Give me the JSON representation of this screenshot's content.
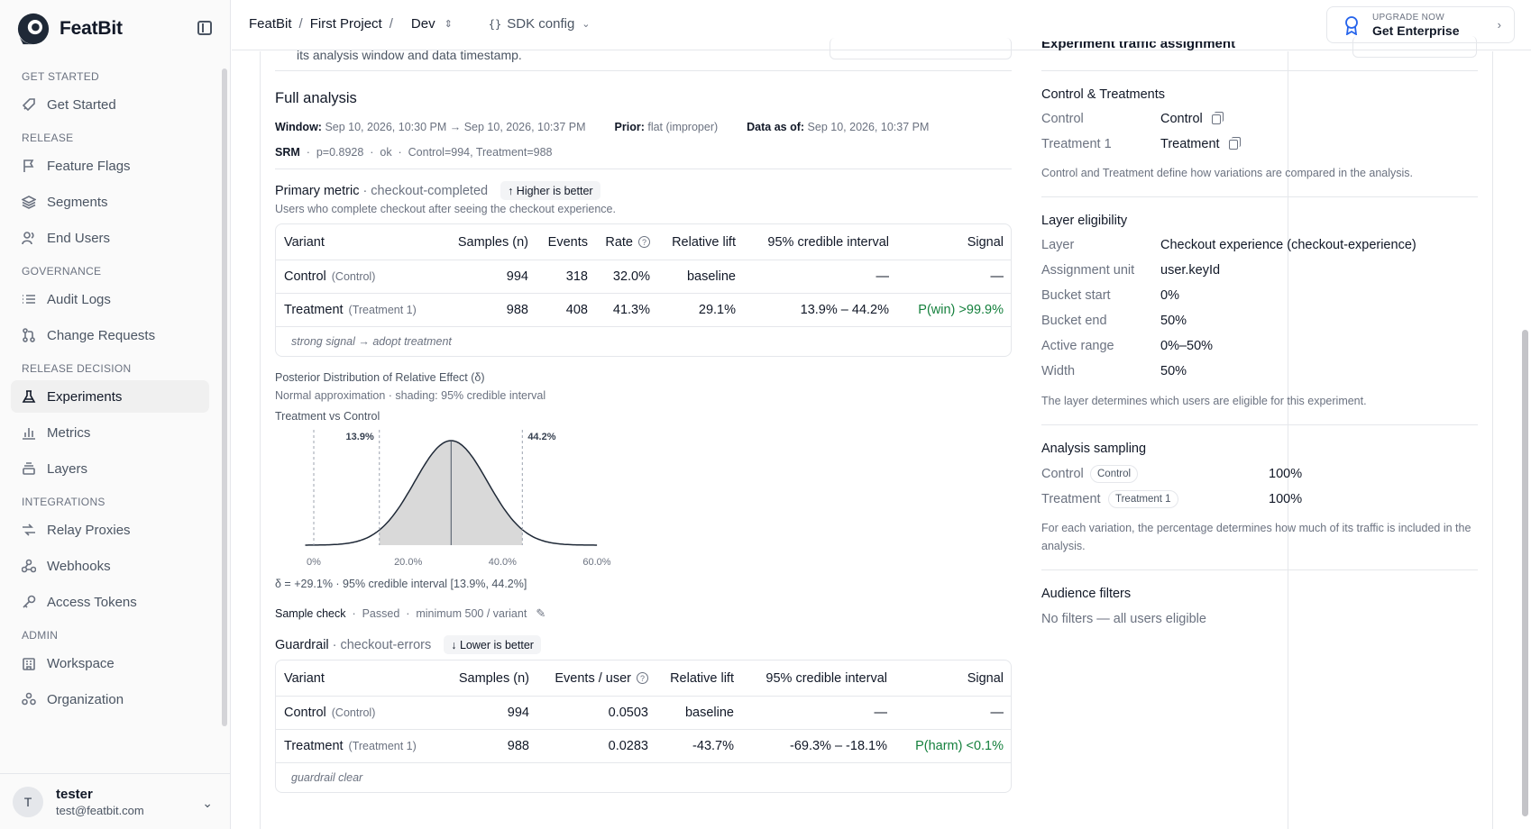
{
  "brand": {
    "name": "FeatBit"
  },
  "sidebar": {
    "sections": [
      {
        "title": "GET STARTED",
        "items": [
          {
            "label": "Get Started",
            "icon": "rocket-icon"
          }
        ]
      },
      {
        "title": "RELEASE",
        "items": [
          {
            "label": "Feature Flags",
            "icon": "flag-icon"
          },
          {
            "label": "Segments",
            "icon": "layers-icon"
          },
          {
            "label": "End Users",
            "icon": "users-icon"
          }
        ]
      },
      {
        "title": "GOVERNANCE",
        "items": [
          {
            "label": "Audit Logs",
            "icon": "list-icon"
          },
          {
            "label": "Change Requests",
            "icon": "git-pull-request-icon"
          }
        ]
      },
      {
        "title": "RELEASE DECISION",
        "items": [
          {
            "label": "Experiments",
            "icon": "flask-icon"
          },
          {
            "label": "Metrics",
            "icon": "bar-chart-icon"
          },
          {
            "label": "Layers",
            "icon": "stack-icon"
          }
        ]
      },
      {
        "title": "INTEGRATIONS",
        "items": [
          {
            "label": "Relay Proxies",
            "icon": "relay-icon"
          },
          {
            "label": "Webhooks",
            "icon": "webhook-icon"
          },
          {
            "label": "Access Tokens",
            "icon": "key-icon"
          }
        ]
      },
      {
        "title": "ADMIN",
        "items": [
          {
            "label": "Workspace",
            "icon": "building-icon"
          },
          {
            "label": "Organization",
            "icon": "organization-icon"
          }
        ]
      }
    ],
    "user": {
      "initial": "T",
      "name": "tester",
      "email": "test@featbit.com"
    }
  },
  "topbar": {
    "crumb1": "FeatBit",
    "crumb2": "First Project",
    "env": "Dev",
    "sdk_config": "SDK config",
    "upgrade_small": "UPGRADE NOW",
    "upgrade_big": "Get Enterprise"
  },
  "truncated": {
    "left_text": "its analysis window and data timestamp.",
    "right_text": "Experiment traffic assignment"
  },
  "analysis": {
    "title": "Full analysis",
    "window_label": "Window:",
    "window_value": "Sep 10, 2026, 10:30 PM → Sep 10, 2026, 10:37 PM",
    "prior_label": "Prior:",
    "prior_value": "flat (improper)",
    "asof_label": "Data as of:",
    "asof_value": "Sep 10, 2026, 10:37 PM",
    "srm_label": "SRM",
    "srm_p": "p=0.8928",
    "srm_status": "ok",
    "srm_counts": "Control=994, Treatment=988"
  },
  "primary": {
    "label": "Primary metric",
    "name": "· checkout-completed",
    "direction": "↑ Higher is better",
    "description": "Users who complete checkout after seeing the checkout experience.",
    "headers": [
      "Variant",
      "Samples (n)",
      "Events",
      "Rate",
      "Relative lift",
      "95% credible interval",
      "Signal"
    ],
    "rows": [
      {
        "name": "Control",
        "tag": "(Control)",
        "n": "994",
        "events": "318",
        "rate": "32.0%",
        "lift": "baseline",
        "ci": "—",
        "signal": "—"
      },
      {
        "name": "Treatment",
        "tag": "(Treatment 1)",
        "n": "988",
        "events": "408",
        "rate": "41.3%",
        "lift": "29.1%",
        "ci": "13.9% – 44.2%",
        "signal": "P(win) >99.9%"
      }
    ],
    "note": "strong signal → adopt treatment"
  },
  "posterior": {
    "title": "Posterior Distribution of Relative Effect (δ)",
    "subtitle": "Normal approximation · shading: 95% credible interval",
    "comparison": "Treatment vs Control",
    "lower_label": "13.9%",
    "upper_label": "44.2%",
    "ticks": [
      "0%",
      "20.0%",
      "40.0%",
      "60.0%"
    ],
    "summary": "δ = +29.1% · 95% credible interval [13.9%, 44.2%]"
  },
  "chart_data": {
    "type": "area",
    "title": "Posterior Distribution of Relative Effect (δ)",
    "xlabel": "",
    "ylabel": "",
    "mean": 29.1,
    "ci": [
      13.9,
      44.2
    ],
    "xlim": [
      0,
      60
    ],
    "x_ticks": [
      "0%",
      "20.0%",
      "40.0%",
      "60.0%"
    ],
    "series": [
      {
        "name": "Treatment vs Control"
      }
    ]
  },
  "sample_check": {
    "label": "Sample check",
    "status": "Passed",
    "detail": "minimum 500 / variant"
  },
  "guardrail": {
    "label": "Guardrail",
    "name": "· checkout-errors",
    "direction": "↓ Lower is better",
    "headers": [
      "Variant",
      "Samples (n)",
      "Events / user",
      "Relative lift",
      "95% credible interval",
      "Signal"
    ],
    "rows": [
      {
        "name": "Control",
        "tag": "(Control)",
        "n": "994",
        "epu": "0.0503",
        "lift": "baseline",
        "ci": "—",
        "signal": "—"
      },
      {
        "name": "Treatment",
        "tag": "(Treatment 1)",
        "n": "988",
        "epu": "0.0283",
        "lift": "-43.7%",
        "ci": "-69.3% – -18.1%",
        "signal": "P(harm) <0.1%"
      }
    ],
    "note": "guardrail clear"
  },
  "right": {
    "ct_title": "Control & Treatments",
    "ct_rows": [
      {
        "label": "Control",
        "value": "Control"
      },
      {
        "label": "Treatment 1",
        "value": "Treatment"
      }
    ],
    "ct_note": "Control and Treatment define how variations are compared in the analysis.",
    "layer_title": "Layer eligibility",
    "layer_rows": [
      {
        "label": "Layer",
        "value": "Checkout experience (checkout-experience)"
      },
      {
        "label": "Assignment unit",
        "value": "user.keyId"
      },
      {
        "label": "Bucket start",
        "value": "0%"
      },
      {
        "label": "Bucket end",
        "value": "50%"
      },
      {
        "label": "Active range",
        "value": "0%–50%"
      },
      {
        "label": "Width",
        "value": "50%"
      }
    ],
    "layer_note": "The layer determines which users are eligible for this experiment.",
    "sampling_title": "Analysis sampling",
    "sampling_rows": [
      {
        "label": "Control",
        "chip": "Control",
        "value": "100%"
      },
      {
        "label": "Treatment",
        "chip": "Treatment 1",
        "value": "100%"
      }
    ],
    "sampling_note": "For each variation, the percentage determines how much of its traffic is included in the analysis.",
    "audience_title": "Audience filters",
    "audience_value": "No filters — all users eligible"
  },
  "colors": {
    "accent_green": "#15803d",
    "shade": "#d9d9d9"
  }
}
